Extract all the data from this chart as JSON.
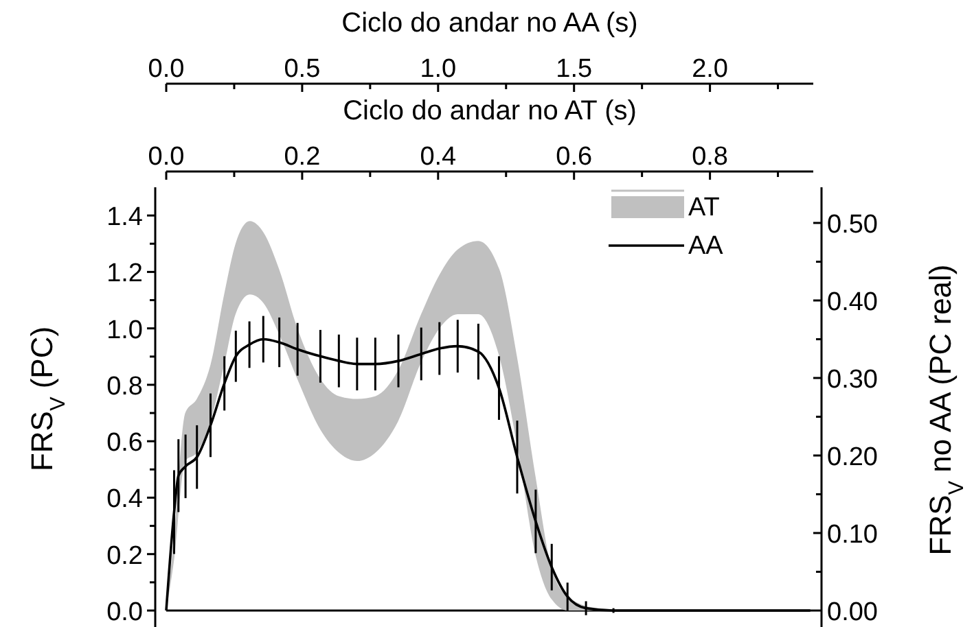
{
  "chart_data": {
    "type": "line",
    "xlabel": "Ciclo do andar no AA (s)",
    "x2label": "Ciclo do andar no AT (s)",
    "ylabel": "FRS$_{V}$ (PC)",
    "y2label": "FRS$_{V}$ no AA (PC real)",
    "xlim": [
      0,
      2.38
    ],
    "xticks": [
      {
        "value": 0,
        "label": "0.0"
      },
      {
        "value": 0.25,
        "label": null
      },
      {
        "value": 0.5,
        "label": "0.5"
      },
      {
        "value": 0.75,
        "label": null
      },
      {
        "value": 1,
        "label": "1.0"
      },
      {
        "value": 1.25,
        "label": null
      },
      {
        "value": 1.5,
        "label": "1.5"
      },
      {
        "value": 1.75,
        "label": null
      },
      {
        "value": 2,
        "label": "2.0"
      },
      {
        "value": 2.25,
        "label": null
      }
    ],
    "x2lim": [
      0,
      0.952
    ],
    "x2ticks": [
      {
        "value": 0,
        "label": "0.0"
      },
      {
        "value": 0.1,
        "label": null
      },
      {
        "value": 0.2,
        "label": "0.2"
      },
      {
        "value": 0.3,
        "label": null
      },
      {
        "value": 0.4,
        "label": "0.4"
      },
      {
        "value": 0.5,
        "label": null
      },
      {
        "value": 0.6,
        "label": "0.6"
      },
      {
        "value": 0.7,
        "label": null
      },
      {
        "value": 0.8,
        "label": "0.8"
      },
      {
        "value": 0.9,
        "label": null
      }
    ],
    "ylim": [
      0,
      1.5
    ],
    "yticks": [
      {
        "value": 0,
        "label": "0.0"
      },
      {
        "value": 0.1,
        "label": null
      },
      {
        "value": 0.2,
        "label": "0.2"
      },
      {
        "value": 0.3,
        "label": null
      },
      {
        "value": 0.4,
        "label": "0.4"
      },
      {
        "value": 0.5,
        "label": null
      },
      {
        "value": 0.6,
        "label": "0.6"
      },
      {
        "value": 0.7,
        "label": null
      },
      {
        "value": 0.8,
        "label": "0.8"
      },
      {
        "value": 0.9,
        "label": null
      },
      {
        "value": 1,
        "label": "1.0"
      },
      {
        "value": 1.1,
        "label": null
      },
      {
        "value": 1.2,
        "label": "1.2"
      },
      {
        "value": 1.3,
        "label": null
      },
      {
        "value": 1.4,
        "label": "1.4"
      }
    ],
    "y2lim": [
      0,
      0.546
    ],
    "y2ticks": [
      {
        "value": 0,
        "label": "0.00"
      },
      {
        "value": 0.05,
        "label": null
      },
      {
        "value": 0.1,
        "label": "0.10"
      },
      {
        "value": 0.15,
        "label": null
      },
      {
        "value": 0.2,
        "label": "0.20"
      },
      {
        "value": 0.25,
        "label": null
      },
      {
        "value": 0.3,
        "label": "0.30"
      },
      {
        "value": 0.35,
        "label": null
      },
      {
        "value": 0.4,
        "label": "0.40"
      },
      {
        "value": 0.45,
        "label": null
      },
      {
        "value": 0.5,
        "label": "0.50"
      }
    ],
    "legend": "top right",
    "grid": false,
    "series": [
      {
        "name": "AT",
        "type": "area",
        "axis": "x2",
        "color": "#c0c0c0",
        "x": [
          0,
          0.011,
          0.028,
          0.045,
          0.065,
          0.086,
          0.102,
          0.123,
          0.143,
          0.166,
          0.193,
          0.227,
          0.254,
          0.281,
          0.308,
          0.341,
          0.375,
          0.402,
          0.429,
          0.459,
          0.49,
          0.516,
          0.543,
          0.567,
          0.591,
          0.631,
          0.698,
          0.947
        ],
        "values": [
          null,
          null,
          null,
          null,
          null,
          null,
          null,
          null,
          null,
          null,
          null,
          null,
          null,
          null,
          null,
          null,
          null,
          null,
          null,
          null,
          null,
          null,
          null,
          null,
          null,
          null,
          null,
          null
        ],
        "upper": [
          0,
          0.25,
          0.7,
          0.75,
          0.87,
          1.13,
          1.3,
          1.38,
          1.34,
          1.21,
          1,
          0.82,
          0.76,
          0.75,
          0.76,
          0.85,
          1.05,
          1.19,
          1.28,
          1.31,
          1.21,
          0.9,
          0.48,
          0.15,
          0.05,
          0.01,
          0,
          0
        ],
        "lower": [
          0,
          0.17,
          0.53,
          0.56,
          0.67,
          0.88,
          1.05,
          1.12,
          1.09,
          0.98,
          0.82,
          0.64,
          0.56,
          0.53,
          0.56,
          0.67,
          0.88,
          1,
          1.05,
          1.05,
          0.9,
          0.59,
          0.2,
          0.04,
          0,
          0,
          0,
          0
        ]
      },
      {
        "name": "AA",
        "type": "line",
        "axis": "y2",
        "color": "#000000",
        "x": [
          0,
          0.029,
          0.045,
          0.071,
          0.113,
          0.163,
          0.214,
          0.256,
          0.306,
          0.357,
          0.416,
          0.483,
          0.567,
          0.635,
          0.702,
          0.769,
          0.854,
          0.938,
          1.005,
          1.072,
          1.148,
          1.224,
          1.291,
          1.359,
          1.418,
          1.476,
          1.544,
          1.645,
          1.746,
          2.369
        ],
        "values": [
          0,
          0.127,
          0.174,
          0.186,
          0.198,
          0.239,
          0.293,
          0.328,
          0.343,
          0.35,
          0.346,
          0.337,
          0.328,
          0.322,
          0.318,
          0.318,
          0.322,
          0.331,
          0.338,
          0.341,
          0.334,
          0.287,
          0.198,
          0.115,
          0.056,
          0.018,
          0.003,
          0,
          0,
          0
        ],
        "errors": [
          null,
          0.054,
          0.047,
          0.041,
          0.041,
          0.041,
          0.035,
          0.033,
          0.03,
          0.03,
          0.032,
          0.034,
          0.034,
          0.034,
          0.034,
          0.034,
          0.034,
          0.034,
          0.034,
          0.034,
          0.036,
          0.041,
          0.047,
          0.041,
          0.03,
          0.018,
          0.009,
          0.003,
          null,
          null
        ]
      }
    ]
  }
}
